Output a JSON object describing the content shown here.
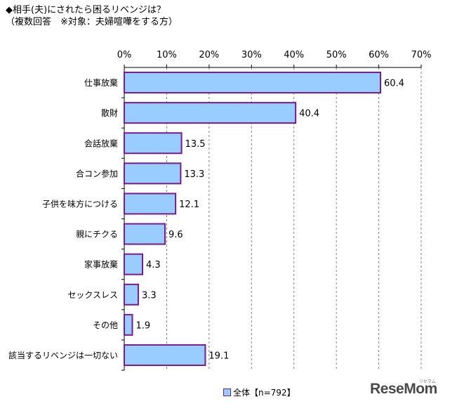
{
  "title": {
    "line1": "◆相手(夫)にされたら困るリベンジは？",
    "line2": "（複数回答　※対象：夫婦喧嘩をする方）"
  },
  "chart_data": {
    "type": "bar",
    "orientation": "horizontal",
    "categories": [
      "仕事放棄",
      "散財",
      "会話放棄",
      "合コン参加",
      "子供を味方につける",
      "親にチクる",
      "家事放棄",
      "セックスレス",
      "その他",
      "該当するリベンジは一切ない"
    ],
    "values": [
      60.4,
      40.4,
      13.5,
      13.3,
      12.1,
      9.6,
      4.3,
      3.3,
      1.9,
      19.1
    ],
    "value_labels": [
      "60.4",
      "40.4",
      "13.5",
      "13.3",
      "12.1",
      "9.6",
      "4.3",
      "3.3",
      "1.9",
      "19.1"
    ],
    "xlim": [
      0,
      70
    ],
    "xticks": [
      0,
      10,
      20,
      30,
      40,
      50,
      60,
      70
    ],
    "xtick_labels": [
      "0%",
      "10%",
      "20%",
      "30%",
      "40%",
      "50%",
      "60%",
      "70%"
    ],
    "xtick_position": "top",
    "grid": "vertical dashed",
    "series": [
      {
        "name": "全体【n=792】",
        "values": [
          60.4,
          40.4,
          13.5,
          13.3,
          12.1,
          9.6,
          4.3,
          3.3,
          1.9,
          19.1
        ]
      }
    ],
    "legend_position": "bottom-center",
    "colors": {
      "bar_fill": "#99ccff",
      "bar_stroke": "#7a1a8c",
      "grid": "#808080",
      "axis": "#000000"
    }
  },
  "legend": {
    "label": "全体【n=792】"
  },
  "brand": {
    "name": "ReseMom",
    "small": "リセマム"
  }
}
